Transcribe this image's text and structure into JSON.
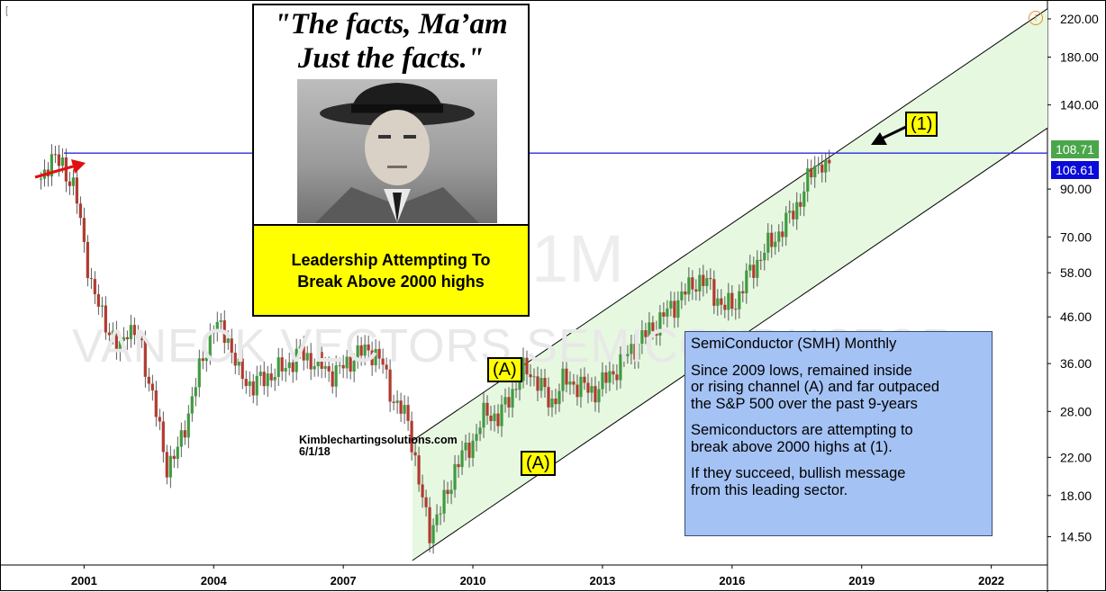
{
  "quote": {
    "text": "\"The facts, Ma’am\n Just the facts.\"",
    "photo": "man-in-fedora-photo"
  },
  "leadership_box": "Leadership Attempting To\nBreak Above 2000 highs",
  "info": {
    "title": "SemiConductor (SMH) Monthly",
    "p1": "Since 2009 lows, remained inside\nor rising channel (A) and far outpaced\nthe S&P 500 over the past 9-years",
    "p2": "Semiconductors are attempting to\nbreak above 2000 highs at (1).",
    "p3": "If they succeed, bullish message\nfrom this leading sector."
  },
  "labels": {
    "a_upper": "(A)",
    "a_lower": "(A)",
    "one": "(1)"
  },
  "credit": {
    "site": "Kimblechartingsolutions.com",
    "date": "6/1/18"
  },
  "price_tags": {
    "green": "108.71",
    "blue": "106.61"
  },
  "watermark": {
    "ticker": "VANECK VECTORS SEMICONDUCTOR",
    "timeframe": "1M"
  },
  "colors": {
    "up": "#3f9a3f",
    "down": "#b03a2e",
    "resistance": "#2b2be0",
    "channel_fill": "#e6f8e0",
    "annotation_yellow": "#ffff00",
    "info_blue": "#a4c2f4",
    "arrow_red": "#e01010"
  },
  "chart_data": {
    "type": "candlestick",
    "title": "",
    "xlabel": "",
    "ylabel": "",
    "scale": "log",
    "x_ticks": [
      "2001",
      "2004",
      "2007",
      "2010",
      "2013",
      "2016",
      "2019",
      "2022"
    ],
    "y_ticks": [
      14.5,
      18.0,
      22.0,
      28.0,
      36.0,
      46.0,
      58.0,
      70.0,
      90.0,
      108.71,
      140.0,
      180.0,
      220.0
    ],
    "y_tick_labels": [
      "14.50",
      "18.00",
      "22.00",
      "28.00",
      "36.00",
      "46.00",
      "58.00",
      "70.00",
      "90.00",
      "108.71",
      "140.00",
      "180.00",
      "220.00"
    ],
    "x_range": [
      1999.2,
      2023.3
    ],
    "y_range": [
      12.5,
      235.0
    ],
    "resistance_level": 108.71,
    "last_price": 106.61,
    "channel": {
      "upper": [
        [
          2008.6,
          24.0
        ],
        [
          2023.3,
          232.0
        ]
      ],
      "lower": [
        [
          2008.6,
          12.8
        ],
        [
          2023.3,
          124.0
        ]
      ]
    },
    "price_path": [
      [
        2000.0,
        95
      ],
      [
        2000.2,
        105
      ],
      [
        2000.5,
        103
      ],
      [
        2000.8,
        88
      ],
      [
        2001.0,
        68
      ],
      [
        2001.2,
        52
      ],
      [
        2001.5,
        45
      ],
      [
        2001.8,
        38
      ],
      [
        2002.0,
        44
      ],
      [
        2002.3,
        40
      ],
      [
        2002.6,
        30
      ],
      [
        2002.9,
        21
      ],
      [
        2003.2,
        23
      ],
      [
        2003.6,
        33
      ],
      [
        2004.0,
        44
      ],
      [
        2004.3,
        42
      ],
      [
        2004.6,
        34
      ],
      [
        2004.9,
        32
      ],
      [
        2005.3,
        34
      ],
      [
        2005.6,
        35
      ],
      [
        2006.0,
        38
      ],
      [
        2006.4,
        36
      ],
      [
        2006.8,
        34
      ],
      [
        2007.2,
        37
      ],
      [
        2007.6,
        39
      ],
      [
        2007.9,
        36
      ],
      [
        2008.2,
        29
      ],
      [
        2008.5,
        27
      ],
      [
        2008.8,
        18
      ],
      [
        2009.0,
        15
      ],
      [
        2009.3,
        17
      ],
      [
        2009.6,
        21
      ],
      [
        2010.0,
        24
      ],
      [
        2010.3,
        28
      ],
      [
        2010.6,
        27
      ],
      [
        2010.9,
        31
      ],
      [
        2011.2,
        35
      ],
      [
        2011.5,
        33
      ],
      [
        2011.8,
        29
      ],
      [
        2012.1,
        33
      ],
      [
        2012.5,
        32
      ],
      [
        2012.8,
        31
      ],
      [
        2013.2,
        34
      ],
      [
        2013.6,
        38
      ],
      [
        2014.0,
        42
      ],
      [
        2014.4,
        46
      ],
      [
        2014.8,
        51
      ],
      [
        2015.2,
        56
      ],
      [
        2015.5,
        54
      ],
      [
        2015.8,
        48
      ],
      [
        2016.1,
        50
      ],
      [
        2016.4,
        58
      ],
      [
        2016.8,
        66
      ],
      [
        2017.2,
        74
      ],
      [
        2017.6,
        86
      ],
      [
        2017.9,
        102
      ],
      [
        2018.1,
        104
      ],
      [
        2018.2,
        97
      ],
      [
        2018.33,
        106.61
      ]
    ]
  }
}
